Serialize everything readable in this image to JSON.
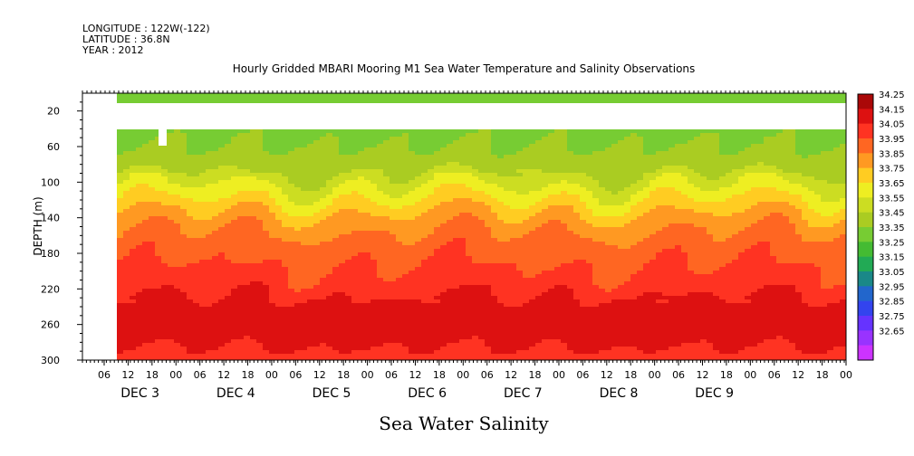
{
  "header": {
    "lines": [
      "LONGITUDE : 122W(-122)",
      "LATITUDE : 36.8N",
      "YEAR : 2012"
    ]
  },
  "chart_data": {
    "type": "heatmap",
    "title": "Hourly Gridded MBARI Mooring M1 Sea Water Temperature and Salinity Observations",
    "xlabel": "Sea Water Salinity",
    "ylabel": "DEPTH (m)",
    "ylim": [
      300,
      0
    ],
    "y_ticks": [
      20,
      60,
      100,
      140,
      180,
      220,
      260,
      300
    ],
    "x_hour_ticks": [
      "06",
      "12",
      "18",
      "00",
      "06",
      "12",
      "18",
      "00",
      "06",
      "12",
      "18",
      "00",
      "06",
      "12",
      "18",
      "00",
      "06",
      "12",
      "18",
      "00",
      "06",
      "12",
      "18",
      "00",
      "06",
      "12",
      "18",
      "00",
      "06",
      "12",
      "18",
      "00"
    ],
    "x_day_labels": [
      "DEC 3",
      "DEC 4",
      "DEC 5",
      "DEC 6",
      "DEC 7",
      "DEC 8",
      "DEC 9"
    ],
    "colorbar": {
      "levels": [
        "32.65",
        "32.75",
        "32.85",
        "32.95",
        "33.05",
        "33.15",
        "33.25",
        "33.35",
        "33.45",
        "33.55",
        "33.65",
        "33.75",
        "33.85",
        "33.95",
        "34.05",
        "34.15",
        "34.25"
      ],
      "colors": [
        "#cc33ff",
        "#9933ff",
        "#6633ff",
        "#3344ee",
        "#2266cc",
        "#1a8888",
        "#22aa55",
        "#44bb33",
        "#77cc33",
        "#aacc22",
        "#ccdd22",
        "#eeee22",
        "#ffcc22",
        "#ff9922",
        "#ff6622",
        "#ff3322",
        "#dd1111",
        "#aa0808"
      ]
    },
    "depth_profile": [
      {
        "depth": 10,
        "salinity": 33.4
      },
      {
        "depth": 40,
        "salinity": 33.42
      },
      {
        "depth": 60,
        "salinity": 33.45
      },
      {
        "depth": 80,
        "salinity": 33.5
      },
      {
        "depth": 100,
        "salinity": 33.62
      },
      {
        "depth": 120,
        "salinity": 33.75
      },
      {
        "depth": 140,
        "salinity": 33.88
      },
      {
        "depth": 160,
        "salinity": 33.97
      },
      {
        "depth": 180,
        "salinity": 34.02
      },
      {
        "depth": 200,
        "salinity": 34.06
      },
      {
        "depth": 220,
        "salinity": 34.12
      },
      {
        "depth": 240,
        "salinity": 34.18
      },
      {
        "depth": 260,
        "salinity": 34.22
      },
      {
        "depth": 280,
        "salinity": 34.17
      },
      {
        "depth": 300,
        "salinity": 34.1
      }
    ]
  }
}
